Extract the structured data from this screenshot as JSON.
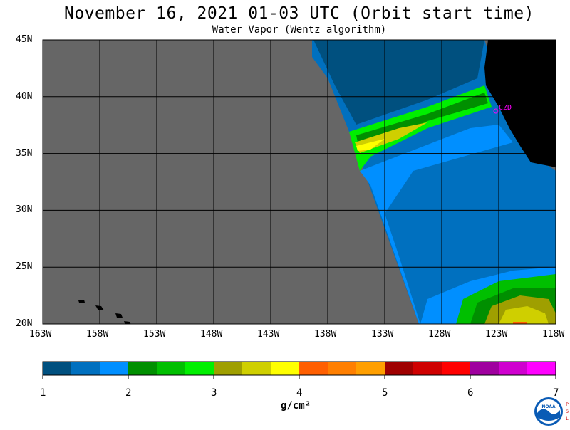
{
  "title": "November 16, 2021  01-03 UTC  (Orbit start time)",
  "subtitle": "Water Vapor (Wentz algorithm)",
  "lat_labels": [
    "45N",
    "40N",
    "35N",
    "30N",
    "25N",
    "20N"
  ],
  "lon_labels": [
    "163W",
    "158W",
    "153W",
    "148W",
    "143W",
    "138W",
    "133W",
    "128W",
    "123W",
    "118W"
  ],
  "station_label": "CZD",
  "colorbar": {
    "ticks": [
      "1",
      "2",
      "3",
      "4",
      "5",
      "6",
      "7"
    ],
    "unit": "g/cm²",
    "colors": [
      "#00507f",
      "#0070bf",
      "#008fff",
      "#008f00",
      "#00bf00",
      "#00ef00",
      "#9f9f00",
      "#cfcf00",
      "#ffff00",
      "#ff5f00",
      "#ff7f00",
      "#ff9f00",
      "#9f0000",
      "#cf0000",
      "#ff0000",
      "#9f009f",
      "#cf00cf",
      "#ff00ff"
    ]
  },
  "colors": {
    "no_data": "#666666",
    "land": "#000000"
  },
  "logo": {
    "text": "NOAA",
    "side_letters": [
      "P",
      "S",
      "L"
    ]
  }
}
